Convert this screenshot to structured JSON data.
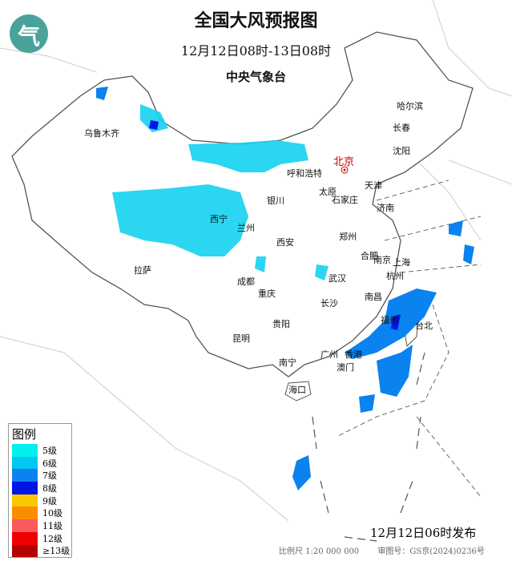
{
  "header": {
    "title": "全国大风预报图",
    "period": "12月12日08时-13日08时",
    "issuer": "中央气象台"
  },
  "cities": [
    {
      "name": "乌鲁木齐"
    },
    {
      "name": "哈尔滨"
    },
    {
      "name": "长春"
    },
    {
      "name": "沈阳"
    },
    {
      "name": "北京"
    },
    {
      "name": "天津"
    },
    {
      "name": "呼和浩特"
    },
    {
      "name": "太原"
    },
    {
      "name": "石家庄"
    },
    {
      "name": "济南"
    },
    {
      "name": "银川"
    },
    {
      "name": "西宁"
    },
    {
      "name": "兰州"
    },
    {
      "name": "郑州"
    },
    {
      "name": "西安"
    },
    {
      "name": "合肥"
    },
    {
      "name": "南京"
    },
    {
      "name": "上海"
    },
    {
      "name": "杭州"
    },
    {
      "name": "武汉"
    },
    {
      "name": "成都"
    },
    {
      "name": "重庆"
    },
    {
      "name": "长沙"
    },
    {
      "name": "南昌"
    },
    {
      "name": "拉萨"
    },
    {
      "name": "贵阳"
    },
    {
      "name": "福州"
    },
    {
      "name": "台北"
    },
    {
      "name": "昆明"
    },
    {
      "name": "南宁"
    },
    {
      "name": "广州"
    },
    {
      "name": "香港"
    },
    {
      "name": "澳门"
    },
    {
      "name": "海口"
    }
  ],
  "legend": {
    "title": "图例",
    "items": [
      {
        "label": "5级",
        "color": "#00f0f0"
      },
      {
        "label": "6级",
        "color": "#00c8f0"
      },
      {
        "label": "7级",
        "color": "#0a82f0"
      },
      {
        "label": "8级",
        "color": "#0014e6"
      },
      {
        "label": "9级",
        "color": "#fac800"
      },
      {
        "label": "10级",
        "color": "#fa8c00"
      },
      {
        "label": "11级",
        "color": "#fa5a5a"
      },
      {
        "label": "12级",
        "color": "#f00000"
      },
      {
        "label": "≥13级",
        "color": "#b40000"
      }
    ]
  },
  "footer": {
    "issued": "12月12日06时发布",
    "scale": "比例尺 1:20 000 000",
    "map_number": "审图号：GS京(2024)0236号"
  }
}
